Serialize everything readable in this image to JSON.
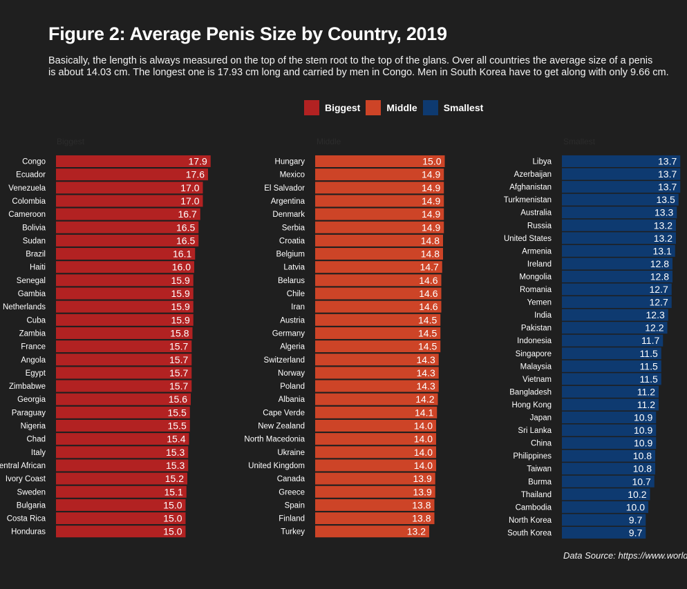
{
  "title": "Figure 2: Average Penis Size by Country, 2019",
  "subtitle_line1": "Basically, the length is always measured on the top of the stem root to the top of the glans. Over all countries the average size of a penis",
  "subtitle_line2": "is about 14.03 cm. The longest one is 17.93 cm long and carried by men in Congo. Men in South Korea have to get along with only 9.66 cm.",
  "source": "Data Source: https://www.world",
  "colors": {
    "background": "#1f1f1f",
    "biggest": "#b22222",
    "middle": "#cd4427",
    "smallest": "#0e3a70"
  },
  "chart_data": {
    "type": "bar",
    "orientation": "horizontal",
    "legend": [
      "Biggest",
      "Middle",
      "Smallest"
    ],
    "legend_position": "top",
    "panels": [
      {
        "name": "Biggest",
        "label": "Biggest",
        "categories": [
          "Congo",
          "Ecuador",
          "Venezuela",
          "Colombia",
          "Cameroon",
          "Bolivia",
          "Sudan",
          "Brazil",
          "Haiti",
          "Senegal",
          "Gambia",
          "Netherlands",
          "Cuba",
          "Zambia",
          "France",
          "Angola",
          "Egypt",
          "Zimbabwe",
          "Georgia",
          "Paraguay",
          "Nigeria",
          "Chad",
          "Italy",
          "Central African",
          "Ivory Coast",
          "Sweden",
          "Bulgaria",
          "Costa Rica",
          "Honduras"
        ],
        "values": [
          17.9,
          17.6,
          17.0,
          17.0,
          16.7,
          16.5,
          16.5,
          16.1,
          16.0,
          15.9,
          15.9,
          15.9,
          15.9,
          15.8,
          15.7,
          15.7,
          15.7,
          15.7,
          15.6,
          15.5,
          15.5,
          15.4,
          15.3,
          15.3,
          15.2,
          15.1,
          15.0,
          15.0,
          15.0
        ],
        "labels": [
          "17.9",
          "17.6",
          "17.0",
          "17.0",
          "16.7",
          "16.5",
          "16.5",
          "16.1",
          "16.0",
          "15.9",
          "15.9",
          "15.9",
          "15.9",
          "15.8",
          "15.7",
          "15.7",
          "15.7",
          "15.7",
          "15.6",
          "15.5",
          "15.5",
          "15.4",
          "15.3",
          "15.3",
          "15.2",
          "15.1",
          "15.0",
          "15.0",
          "15.0"
        ]
      },
      {
        "name": "Middle",
        "label": "Middle",
        "categories": [
          "Hungary",
          "Mexico",
          "El Salvador",
          "Argentina",
          "Denmark",
          "Serbia",
          "Croatia",
          "Belgium",
          "Latvia",
          "Belarus",
          "Chile",
          "Iran",
          "Austria",
          "Germany",
          "Algeria",
          "Switzerland",
          "Norway",
          "Poland",
          "Albania",
          "Cape Verde",
          "New Zealand",
          "North Macedonia",
          "Ukraine",
          "United Kingdom",
          "Canada",
          "Greece",
          "Spain",
          "Finland",
          "Turkey"
        ],
        "values": [
          15.0,
          14.9,
          14.9,
          14.9,
          14.9,
          14.9,
          14.8,
          14.8,
          14.7,
          14.6,
          14.6,
          14.6,
          14.5,
          14.5,
          14.5,
          14.3,
          14.3,
          14.3,
          14.2,
          14.1,
          14.0,
          14.0,
          14.0,
          14.0,
          13.9,
          13.9,
          13.8,
          13.8,
          13.2
        ],
        "labels": [
          "15.0",
          "14.9",
          "14.9",
          "14.9",
          "14.9",
          "14.9",
          "14.8",
          "14.8",
          "14.7",
          "14.6",
          "14.6",
          "14.6",
          "14.5",
          "14.5",
          "14.5",
          "14.3",
          "14.3",
          "14.3",
          "14.2",
          "14.1",
          "14.0",
          "14.0",
          "14.0",
          "14.0",
          "13.9",
          "13.9",
          "13.8",
          "13.8",
          "13.2"
        ]
      },
      {
        "name": "Smallest",
        "label": "Smallest",
        "categories": [
          "Libya",
          "Azerbaijan",
          "Afghanistan",
          "Turkmenistan",
          "Australia",
          "Russia",
          "United States",
          "Armenia",
          "Ireland",
          "Mongolia",
          "Romania",
          "Yemen",
          "India",
          "Pakistan",
          "Indonesia",
          "Singapore",
          "Malaysia",
          "Vietnam",
          "Bangladesh",
          "Hong Kong",
          "Japan",
          "Sri Lanka",
          "China",
          "Philippines",
          "Taiwan",
          "Burma",
          "Thailand",
          "Cambodia",
          "North Korea",
          "South Korea"
        ],
        "values": [
          13.7,
          13.7,
          13.7,
          13.5,
          13.3,
          13.2,
          13.2,
          13.1,
          12.8,
          12.8,
          12.7,
          12.7,
          12.3,
          12.2,
          11.7,
          11.5,
          11.5,
          11.5,
          11.2,
          11.2,
          10.9,
          10.9,
          10.9,
          10.8,
          10.8,
          10.7,
          10.2,
          10.0,
          9.7,
          9.7
        ],
        "labels": [
          "13.7",
          "13.7",
          "13.7",
          "13.5",
          "13.3",
          "13.2",
          "13.2",
          "13.1",
          "12.8",
          "12.8",
          "12.7",
          "12.7",
          "12.3",
          "12.2",
          "11.7",
          "11.5",
          "11.5",
          "11.5",
          "11.2",
          "11.2",
          "10.9",
          "10.9",
          "10.9",
          "10.8",
          "10.8",
          "10.7",
          "10.2",
          "10.0",
          "9.7",
          "9.7"
        ]
      }
    ]
  }
}
